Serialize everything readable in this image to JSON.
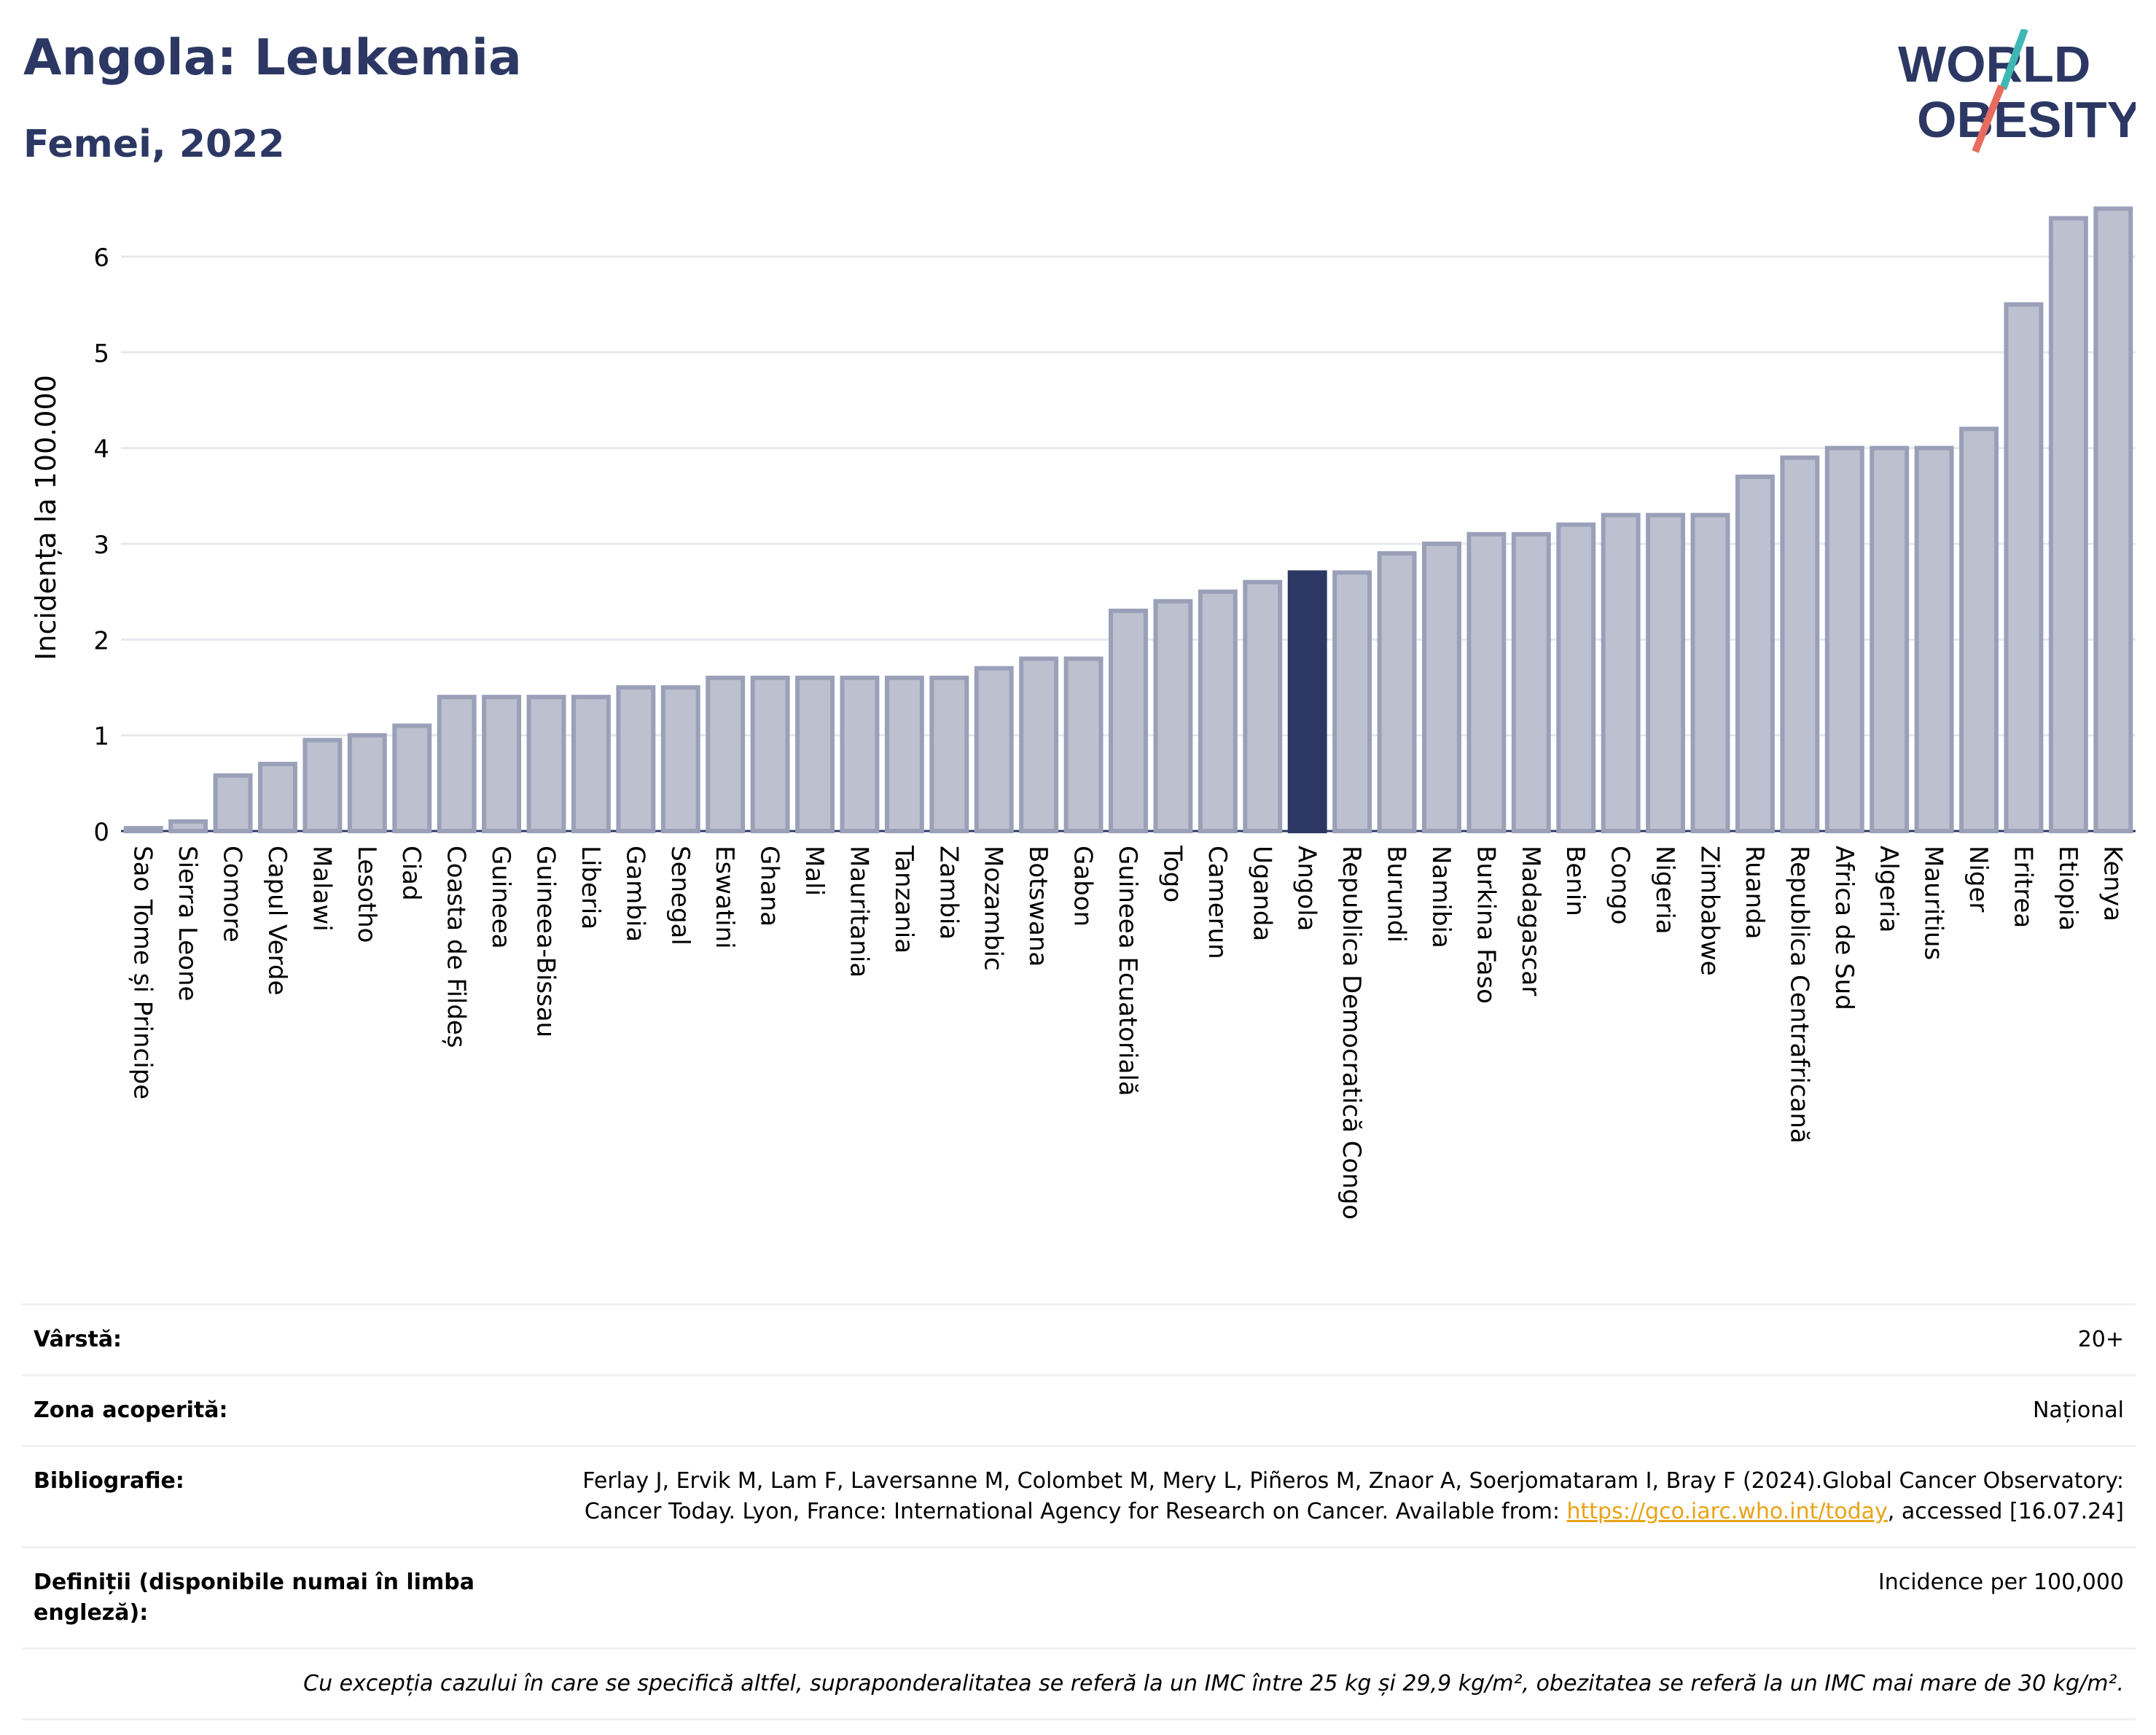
{
  "header": {
    "title": "Angola: Leukemia",
    "subtitle": "Femei, 2022",
    "logo_text_top": "WORLD",
    "logo_text_bottom": "OBESITY"
  },
  "colors": {
    "title": "#2c3863",
    "bar": "#bcc0cf",
    "bar_stroke": "#9aa0b8",
    "highlight": "#2c3863",
    "logo_teal": "#3fb8b4",
    "logo_coral": "#e86b5f"
  },
  "chart_data": {
    "type": "bar",
    "title": "",
    "xlabel": "",
    "ylabel": "Incidența la 100.000",
    "ylim": [
      0,
      6.7
    ],
    "yticks": [
      0,
      1,
      2,
      3,
      4,
      5,
      6
    ],
    "grid": true,
    "highlight": "Angola",
    "categories": [
      "Sao Tome și Principe",
      "Sierra Leone",
      "Comore",
      "Capul Verde",
      "Malawi",
      "Lesotho",
      "Ciad",
      "Coasta de Fildeș",
      "Guineea",
      "Guineea-Bissau",
      "Liberia",
      "Gambia",
      "Senegal",
      "Eswatini",
      "Ghana",
      "Mali",
      "Mauritania",
      "Tanzania",
      "Zambia",
      "Mozambic",
      "Botswana",
      "Gabon",
      "Guineea Ecuatorială",
      "Togo",
      "Camerun",
      "Uganda",
      "Angola",
      "Republica Democratică Congo",
      "Burundi",
      "Namibia",
      "Burkina Faso",
      "Madagascar",
      "Benin",
      "Congo",
      "Nigeria",
      "Zimbabwe",
      "Ruanda",
      "Republica Centrafricană",
      "Africa de Sud",
      "Algeria",
      "Mauritius",
      "Niger",
      "Eritrea",
      "Etiopia",
      "Kenya"
    ],
    "values": [
      0.03,
      0.1,
      0.58,
      0.7,
      0.95,
      1.0,
      1.1,
      1.4,
      1.4,
      1.4,
      1.4,
      1.5,
      1.5,
      1.6,
      1.6,
      1.6,
      1.6,
      1.6,
      1.6,
      1.7,
      1.8,
      1.8,
      2.3,
      2.4,
      2.5,
      2.6,
      2.7,
      2.7,
      2.9,
      3.0,
      3.1,
      3.1,
      3.2,
      3.3,
      3.3,
      3.3,
      3.7,
      3.9,
      4.0,
      4.0,
      4.0,
      4.2,
      5.5,
      6.4,
      6.5
    ]
  },
  "info": {
    "rows": [
      {
        "label": "Vârstă:",
        "value": "20+"
      },
      {
        "label": "Zona acoperită:",
        "value": "Național"
      },
      {
        "label": "Bibliografie:",
        "value_before": "Ferlay J, Ervik M, Lam F, Laversanne M, Colombet M, Mery L, Piñeros M, Znaor A, Soerjomataram I, Bray F (2024).Global Cancer Observatory: Cancer Today. Lyon, France: International Agency for Research on Cancer. Available from: ",
        "link": "https://gco.iarc.who.int/today",
        "value_after": ", accessed [16.07.24]"
      },
      {
        "label": "Definiții (disponibile numai în limba engleză):",
        "value": "Incidence per 100,000"
      }
    ],
    "note": "Cu excepția cazului în care se specifică altfel, supraponderalitatea se referă la un IMC între 25 kg și 29,9 kg/m², obezitatea se referă la un IMC mai mare de 30 kg/m²."
  }
}
